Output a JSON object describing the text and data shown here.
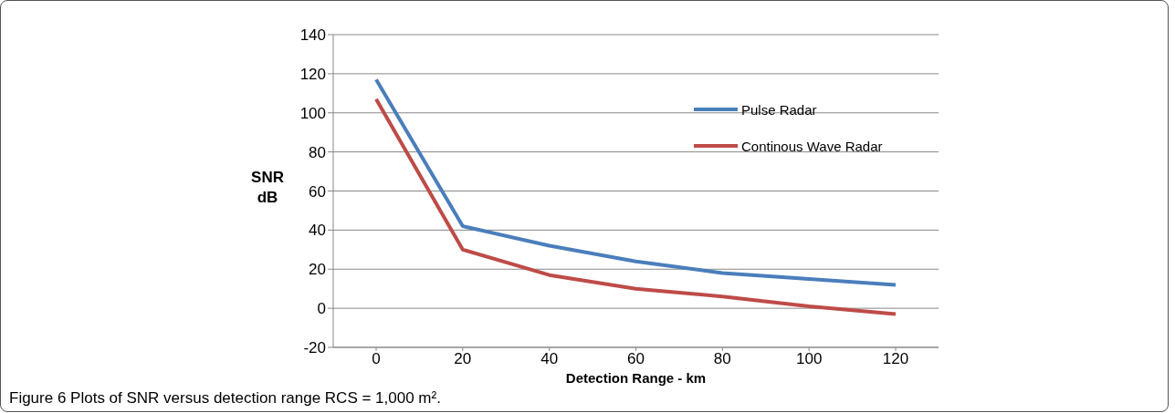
{
  "chart_data": {
    "type": "line",
    "xlabel": "Detection Range - km",
    "ylabel": "SNR dB",
    "annotations": [
      "Figure 6 Plots of SNR versus detection range RCS = 1,000 m²."
    ],
    "categories": [
      "0",
      "20",
      "40",
      "60",
      "80",
      "100",
      "120"
    ],
    "series": [
      {
        "name": "Pulse Radar",
        "color": "#4a7ebb",
        "values": [
          117,
          42,
          32,
          24,
          18,
          15,
          12
        ]
      },
      {
        "name": "Continous Wave Radar",
        "color": "#be4b48",
        "values": [
          107,
          30,
          17,
          10,
          6,
          1,
          -3
        ]
      }
    ],
    "ylim": [
      -20,
      140
    ],
    "yticks": [
      -20,
      0,
      20,
      40,
      60,
      80,
      100,
      120,
      140
    ],
    "grid": "y",
    "legend": "top right",
    "marker": "none",
    "line_style": "solid"
  }
}
